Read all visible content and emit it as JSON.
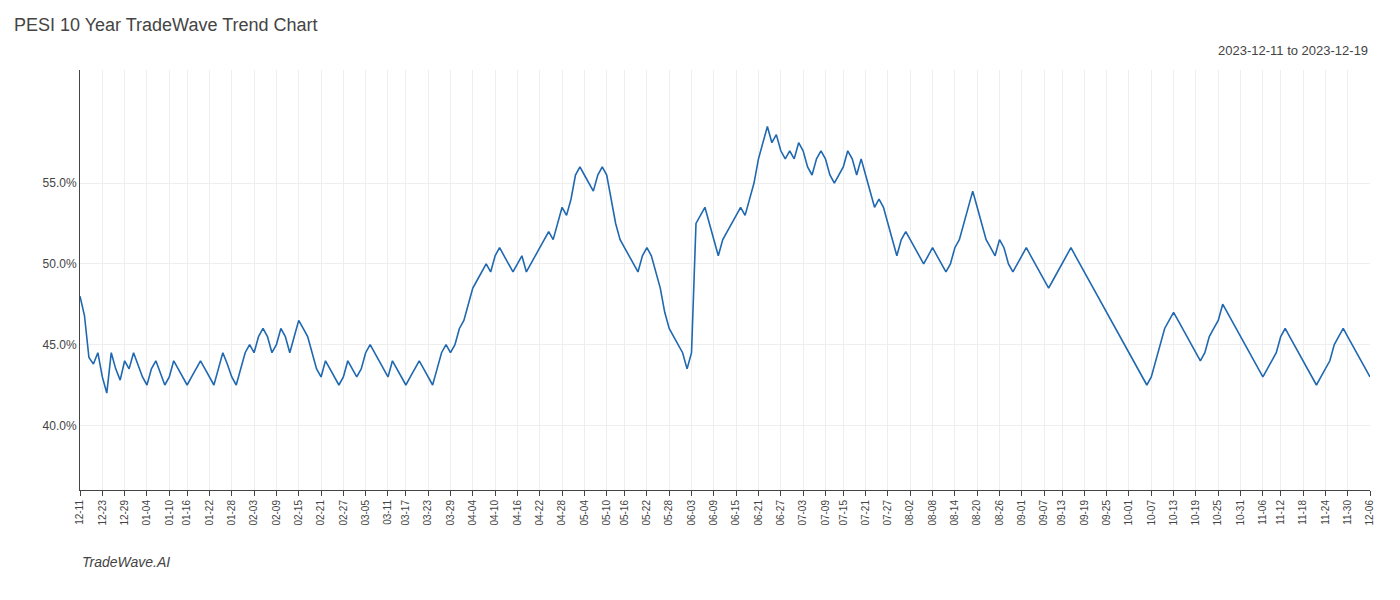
{
  "chart_data": {
    "type": "line",
    "title": "PESI 10 Year TradeWave Trend Chart",
    "subtitle": "2023-12-11 to 2023-12-19",
    "annotations": [
      "TradeWave.AI"
    ],
    "color": "#2068b0",
    "grid": true,
    "ylim": [
      36.0,
      62.0
    ],
    "yticks": [
      {
        "value": 40.0,
        "label": "40.0%"
      },
      {
        "value": 45.0,
        "label": "45.0%"
      },
      {
        "value": 50.0,
        "label": "50.0%"
      },
      {
        "value": 55.0,
        "label": "55.0%"
      }
    ],
    "categories": [
      "12-11",
      null,
      null,
      null,
      null,
      "12-23",
      null,
      null,
      null,
      null,
      "12-29",
      null,
      null,
      null,
      null,
      "01-04",
      null,
      null,
      null,
      null,
      "01-10",
      null,
      null,
      null,
      "01-16",
      null,
      null,
      null,
      null,
      "01-22",
      null,
      null,
      null,
      null,
      "01-28",
      null,
      null,
      null,
      null,
      "02-03",
      null,
      null,
      null,
      null,
      "02-09",
      null,
      null,
      null,
      null,
      "02-15",
      null,
      null,
      null,
      null,
      "02-21",
      null,
      null,
      null,
      null,
      "02-27",
      null,
      null,
      null,
      null,
      "03-05",
      null,
      null,
      null,
      null,
      "03-11",
      null,
      null,
      null,
      "03-17",
      null,
      null,
      null,
      null,
      "03-23",
      null,
      null,
      null,
      null,
      "03-29",
      null,
      null,
      null,
      null,
      "04-04",
      null,
      null,
      null,
      null,
      "04-10",
      null,
      null,
      null,
      null,
      "04-16",
      null,
      null,
      null,
      null,
      "04-22",
      null,
      null,
      null,
      null,
      "04-28",
      null,
      null,
      null,
      null,
      "05-04",
      null,
      null,
      null,
      null,
      "05-10",
      null,
      null,
      null,
      "05-16",
      null,
      null,
      null,
      null,
      "05-22",
      null,
      null,
      null,
      null,
      "05-28",
      null,
      null,
      null,
      null,
      "06-03",
      null,
      null,
      null,
      null,
      "06-09",
      null,
      null,
      null,
      null,
      "06-15",
      null,
      null,
      null,
      null,
      "06-21",
      null,
      null,
      null,
      null,
      "06-27",
      null,
      null,
      null,
      null,
      "07-03",
      null,
      null,
      null,
      null,
      "07-09",
      null,
      null,
      null,
      "07-15",
      null,
      null,
      null,
      null,
      "07-21",
      null,
      null,
      null,
      null,
      "07-27",
      null,
      null,
      null,
      null,
      "08-02",
      null,
      null,
      null,
      null,
      "08-08",
      null,
      null,
      null,
      null,
      "08-14",
      null,
      null,
      null,
      null,
      "08-20",
      null,
      null,
      null,
      null,
      "08-26",
      null,
      null,
      null,
      null,
      "09-01",
      null,
      null,
      null,
      null,
      "09-07",
      null,
      null,
      null,
      "09-13",
      null,
      null,
      null,
      null,
      "09-19",
      null,
      null,
      null,
      null,
      "09-25",
      null,
      null,
      null,
      null,
      "10-01",
      null,
      null,
      null,
      null,
      "10-07",
      null,
      null,
      null,
      null,
      "10-13",
      null,
      null,
      null,
      null,
      "10-19",
      null,
      null,
      null,
      null,
      "10-25",
      null,
      null,
      null,
      null,
      "10-31",
      null,
      null,
      null,
      null,
      "11-06",
      null,
      null,
      null,
      "11-12",
      null,
      null,
      null,
      null,
      "11-18",
      null,
      null,
      null,
      null,
      "11-24",
      null,
      null,
      null,
      null,
      "11-30",
      null,
      null,
      null,
      null,
      "12-06"
    ],
    "values": [
      48.0,
      46.8,
      44.2,
      43.8,
      44.5,
      43.0,
      42.0,
      44.5,
      43.5,
      42.8,
      44.0,
      43.5,
      44.5,
      43.8,
      43.0,
      42.5,
      43.5,
      44.0,
      43.2,
      42.5,
      43.0,
      44.0,
      43.5,
      43.0,
      42.5,
      43.0,
      43.5,
      44.0,
      43.5,
      43.0,
      42.5,
      43.5,
      44.5,
      43.8,
      43.0,
      42.5,
      43.5,
      44.5,
      45.0,
      44.5,
      45.5,
      46.0,
      45.5,
      44.5,
      45.0,
      46.0,
      45.5,
      44.5,
      45.5,
      46.5,
      46.0,
      45.5,
      44.5,
      43.5,
      43.0,
      44.0,
      43.5,
      43.0,
      42.5,
      43.0,
      44.0,
      43.5,
      43.0,
      43.5,
      44.5,
      45.0,
      44.5,
      44.0,
      43.5,
      43.0,
      44.0,
      43.5,
      43.0,
      42.5,
      43.0,
      43.5,
      44.0,
      43.5,
      43.0,
      42.5,
      43.5,
      44.5,
      45.0,
      44.5,
      45.0,
      46.0,
      46.5,
      47.5,
      48.5,
      49.0,
      49.5,
      50.0,
      49.5,
      50.5,
      51.0,
      50.5,
      50.0,
      49.5,
      50.0,
      50.5,
      49.5,
      50.0,
      50.5,
      51.0,
      51.5,
      52.0,
      51.5,
      52.5,
      53.5,
      53.0,
      54.0,
      55.5,
      56.0,
      55.5,
      55.0,
      54.5,
      55.5,
      56.0,
      55.5,
      54.0,
      52.5,
      51.5,
      51.0,
      50.5,
      50.0,
      49.5,
      50.5,
      51.0,
      50.5,
      49.5,
      48.5,
      47.0,
      46.0,
      45.5,
      45.0,
      44.5,
      43.5,
      44.5,
      52.5,
      53.0,
      53.5,
      52.5,
      51.5,
      50.5,
      51.5,
      52.0,
      52.5,
      53.0,
      53.5,
      53.0,
      54.0,
      55.0,
      56.5,
      57.5,
      58.5,
      57.5,
      58.0,
      57.0,
      56.5,
      57.0,
      56.5,
      57.5,
      57.0,
      56.0,
      55.5,
      56.5,
      57.0,
      56.5,
      55.5,
      55.0,
      55.5,
      56.0,
      57.0,
      56.5,
      55.5,
      56.5,
      55.5,
      54.5,
      53.5,
      54.0,
      53.5,
      52.5,
      51.5,
      50.5,
      51.5,
      52.0,
      51.5,
      51.0,
      50.5,
      50.0,
      50.5,
      51.0,
      50.5,
      50.0,
      49.5,
      50.0,
      51.0,
      51.5,
      52.5,
      53.5,
      54.5,
      53.5,
      52.5,
      51.5,
      51.0,
      50.5,
      51.5,
      51.0,
      50.0,
      49.5,
      50.0,
      50.5,
      51.0,
      50.5,
      50.0,
      49.5,
      49.0,
      48.5,
      49.0,
      49.5,
      50.0,
      50.5,
      51.0,
      50.5,
      50.0,
      49.5,
      49.0,
      48.5,
      48.0,
      47.5,
      47.0,
      46.5,
      46.0,
      45.5,
      45.0,
      44.5,
      44.0,
      43.5,
      43.0,
      42.5,
      43.0,
      44.0,
      45.0,
      46.0,
      46.5,
      47.0,
      46.5,
      46.0,
      45.5,
      45.0,
      44.5,
      44.0,
      44.5,
      45.5,
      46.0,
      46.5,
      47.5,
      47.0,
      46.5,
      46.0,
      45.5,
      45.0,
      44.5,
      44.0,
      43.5,
      43.0,
      43.5,
      44.0,
      44.5,
      45.5,
      46.0,
      45.5,
      45.0,
      44.5,
      44.0,
      43.5,
      43.0,
      42.5,
      43.0,
      43.5,
      44.0,
      45.0,
      45.5,
      46.0,
      45.5,
      45.0,
      44.5,
      44.0,
      43.5,
      43.0
    ]
  }
}
